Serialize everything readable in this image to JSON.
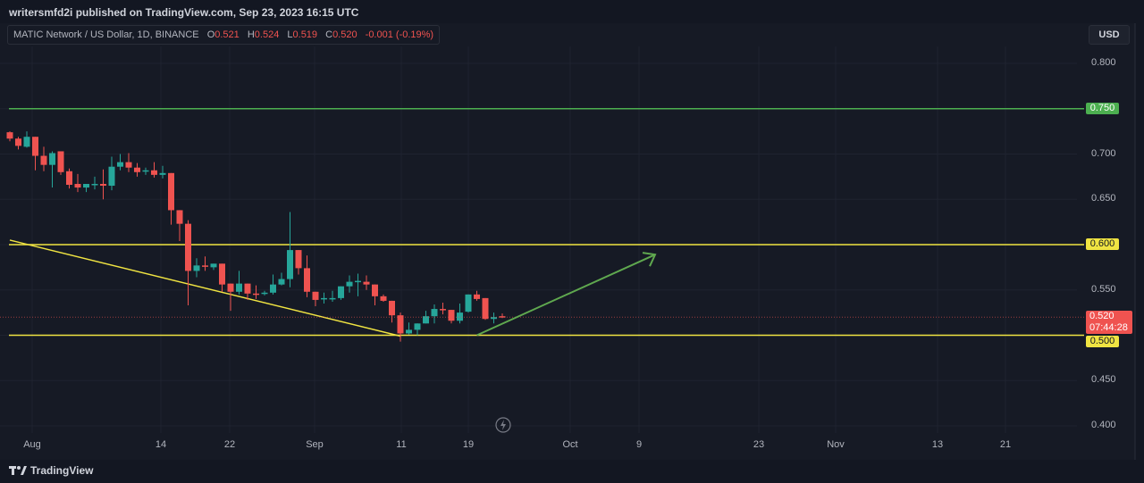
{
  "header": {
    "published": "writersmfd2i published on TradingView.com, Sep 23, 2023 16:15 UTC",
    "symbol": "MATIC Network / US Dollar, 1D, BINANCE",
    "o_label": "O",
    "o": "0.521",
    "h_label": "H",
    "h": "0.524",
    "l_label": "L",
    "l": "0.519",
    "c_label": "C",
    "c": "0.520",
    "change": "-0.001 (-0.19%)"
  },
  "currency_button": "USD",
  "footer": {
    "logo": "TradingView",
    "logo_icon": "tradingview-logo-icon"
  },
  "colors": {
    "up": "#26a69a",
    "down": "#ef5350",
    "level_green": "#4caf50",
    "level_yellow": "#f0e442",
    "arrow": "#5fa84f",
    "background": "#161a25"
  },
  "chart_data": {
    "type": "candlestick",
    "title": "MATIC Network / US Dollar, 1D, BINANCE",
    "ylim": [
      0.39,
      0.825
    ],
    "y_ticks": [
      "0.800",
      "0.700",
      "0.650",
      "0.550",
      "0.450",
      "0.400"
    ],
    "x_ticks": [
      "Aug",
      "14",
      "22",
      "Sep",
      "11",
      "19",
      "Oct",
      "9",
      "23",
      "Nov",
      "13",
      "21"
    ],
    "start_date": "2023-07-27",
    "candles_ohlc": [
      [
        0.724,
        0.725,
        0.714,
        0.717
      ],
      [
        0.717,
        0.719,
        0.705,
        0.709
      ],
      [
        0.708,
        0.725,
        0.707,
        0.719
      ],
      [
        0.719,
        0.719,
        0.682,
        0.698
      ],
      [
        0.698,
        0.708,
        0.681,
        0.688
      ],
      [
        0.688,
        0.703,
        0.663,
        0.701
      ],
      [
        0.703,
        0.703,
        0.677,
        0.68
      ],
      [
        0.681,
        0.684,
        0.662,
        0.666
      ],
      [
        0.667,
        0.678,
        0.658,
        0.663
      ],
      [
        0.663,
        0.667,
        0.658,
        0.667
      ],
      [
        0.666,
        0.675,
        0.661,
        0.667
      ],
      [
        0.667,
        0.683,
        0.65,
        0.665
      ],
      [
        0.665,
        0.697,
        0.66,
        0.686
      ],
      [
        0.686,
        0.7,
        0.682,
        0.691
      ],
      [
        0.691,
        0.701,
        0.68,
        0.685
      ],
      [
        0.685,
        0.69,
        0.675,
        0.68
      ],
      [
        0.681,
        0.685,
        0.677,
        0.682
      ],
      [
        0.682,
        0.691,
        0.674,
        0.677
      ],
      [
        0.677,
        0.687,
        0.673,
        0.679
      ],
      [
        0.679,
        0.679,
        0.622,
        0.638
      ],
      [
        0.638,
        0.638,
        0.604,
        0.623
      ],
      [
        0.623,
        0.627,
        0.533,
        0.571
      ],
      [
        0.571,
        0.585,
        0.564,
        0.577
      ],
      [
        0.577,
        0.587,
        0.571,
        0.576
      ],
      [
        0.575,
        0.579,
        0.572,
        0.579
      ],
      [
        0.579,
        0.579,
        0.548,
        0.556
      ],
      [
        0.557,
        0.557,
        0.527,
        0.548
      ],
      [
        0.548,
        0.571,
        0.545,
        0.557
      ],
      [
        0.557,
        0.557,
        0.539,
        0.546
      ],
      [
        0.546,
        0.555,
        0.54,
        0.545
      ],
      [
        0.546,
        0.549,
        0.544,
        0.547
      ],
      [
        0.547,
        0.567,
        0.545,
        0.556
      ],
      [
        0.556,
        0.569,
        0.555,
        0.562
      ],
      [
        0.562,
        0.636,
        0.553,
        0.594
      ],
      [
        0.594,
        0.594,
        0.567,
        0.574
      ],
      [
        0.574,
        0.588,
        0.542,
        0.548
      ],
      [
        0.548,
        0.548,
        0.532,
        0.539
      ],
      [
        0.54,
        0.547,
        0.535,
        0.541
      ],
      [
        0.541,
        0.549,
        0.537,
        0.541
      ],
      [
        0.541,
        0.554,
        0.539,
        0.554
      ],
      [
        0.554,
        0.566,
        0.547,
        0.559
      ],
      [
        0.559,
        0.568,
        0.543,
        0.56
      ],
      [
        0.559,
        0.566,
        0.55,
        0.556
      ],
      [
        0.556,
        0.556,
        0.533,
        0.543
      ],
      [
        0.543,
        0.545,
        0.537,
        0.538
      ],
      [
        0.538,
        0.538,
        0.514,
        0.522
      ],
      [
        0.522,
        0.525,
        0.493,
        0.502
      ],
      [
        0.502,
        0.514,
        0.501,
        0.506
      ],
      [
        0.506,
        0.513,
        0.5,
        0.513
      ],
      [
        0.513,
        0.527,
        0.513,
        0.521
      ],
      [
        0.521,
        0.534,
        0.513,
        0.529
      ],
      [
        0.529,
        0.536,
        0.523,
        0.528
      ],
      [
        0.528,
        0.528,
        0.513,
        0.516
      ],
      [
        0.516,
        0.535,
        0.513,
        0.525
      ],
      [
        0.526,
        0.545,
        0.525,
        0.545
      ],
      [
        0.545,
        0.549,
        0.538,
        0.54
      ],
      [
        0.541,
        0.541,
        0.517,
        0.518
      ],
      [
        0.518,
        0.525,
        0.513,
        0.52
      ],
      [
        0.521,
        0.524,
        0.519,
        0.52
      ]
    ],
    "horizontal_levels": [
      {
        "price": 0.75,
        "label": "0.750",
        "color": "#4caf50"
      },
      {
        "price": 0.6,
        "label": "0.600",
        "color": "#f0e442"
      },
      {
        "price": 0.5,
        "label": "0.500",
        "color": "#f0e442"
      }
    ],
    "trendline": {
      "from": [
        "2023-07-27",
        0.605
      ],
      "to": [
        "2023-09-11",
        0.499
      ],
      "color": "#f0e442"
    },
    "arrow": {
      "from": [
        "2023-09-20",
        0.5
      ],
      "to": [
        "2023-10-11",
        0.589
      ],
      "color": "#5fa84f"
    },
    "last_price": {
      "label": "0.520",
      "countdown": "07:44:28",
      "color": "#ef5350"
    }
  }
}
